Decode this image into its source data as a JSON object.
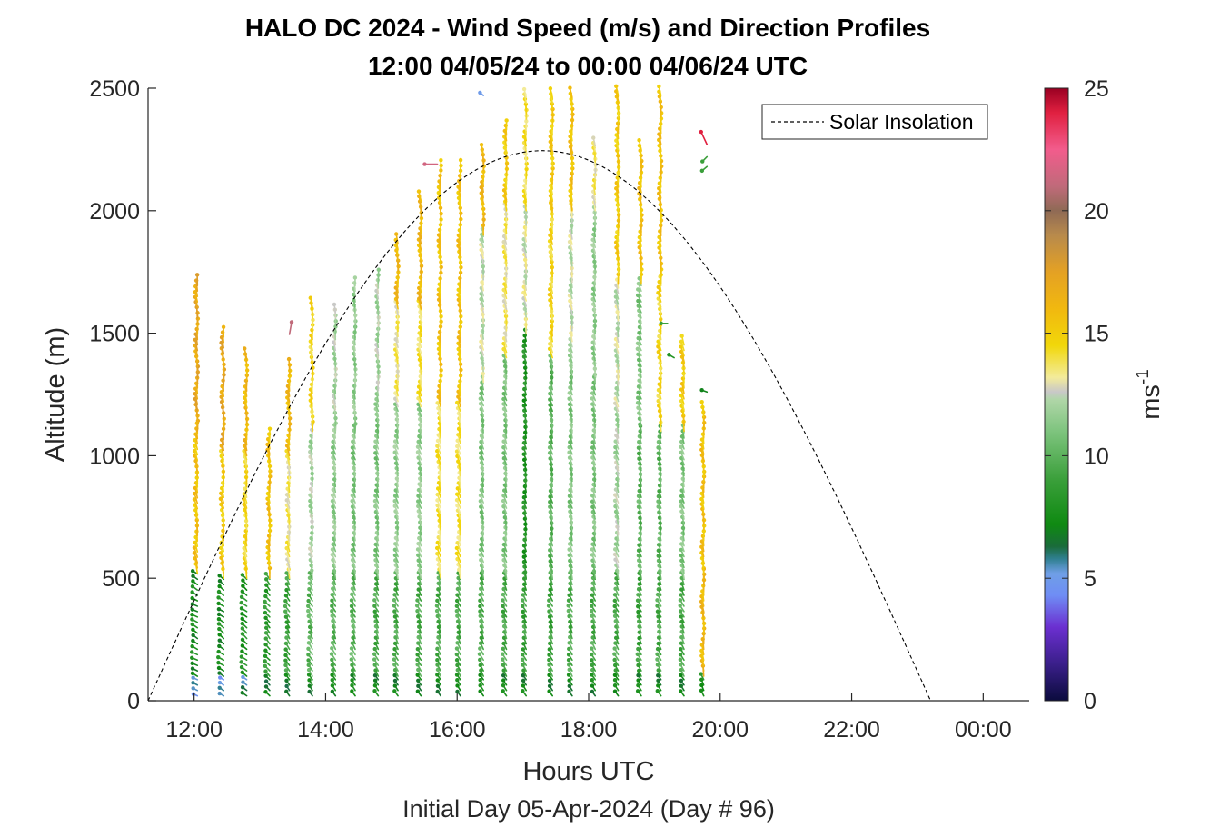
{
  "chart_data": {
    "type": "wind-barb-profile",
    "title_line1": "HALO DC 2024 - Wind Speed (m/s) and Direction Profiles",
    "title_line2": "12:00 04/05/24 to 00:00 04/06/24  UTC",
    "xlabel": "Hours UTC",
    "xsublabel": "Initial Day 05-Apr-2024 (Day # 96)",
    "ylabel": "Altitude (m)",
    "colorbar_label": "ms",
    "colorbar_label_exp": "-1",
    "x_range_hours": [
      11.3,
      24.7
    ],
    "y_range": [
      0,
      2500
    ],
    "x_ticks": [
      {
        "value": 12,
        "label": "12:00"
      },
      {
        "value": 14,
        "label": "14:00"
      },
      {
        "value": 16,
        "label": "16:00"
      },
      {
        "value": 18,
        "label": "18:00"
      },
      {
        "value": 20,
        "label": "20:00"
      },
      {
        "value": 22,
        "label": "22:00"
      },
      {
        "value": 24,
        "label": "00:00"
      }
    ],
    "y_ticks": [
      0,
      500,
      1000,
      1500,
      2000,
      2500
    ],
    "colorbar_range": [
      0,
      25
    ],
    "colorbar_ticks": [
      0,
      5,
      10,
      15,
      20,
      25
    ],
    "colormap": [
      [
        0,
        "#0b0b3d"
      ],
      [
        1.5,
        "#3a1f8a"
      ],
      [
        3,
        "#6b2fd0"
      ],
      [
        4.3,
        "#6f8df5"
      ],
      [
        5.2,
        "#6f9fe6"
      ],
      [
        5.8,
        "#2f7f8f"
      ],
      [
        6.3,
        "#1a6b3a"
      ],
      [
        7.2,
        "#0f8a12"
      ],
      [
        9,
        "#3a9f3a"
      ],
      [
        11,
        "#7ec47e"
      ],
      [
        12.3,
        "#b0d6a8"
      ],
      [
        12.6,
        "#c8c8c8"
      ],
      [
        13.2,
        "#f3eb9a"
      ],
      [
        14.5,
        "#f1d70a"
      ],
      [
        16,
        "#f1b80f"
      ],
      [
        17.5,
        "#e4a124"
      ],
      [
        19,
        "#b88a4c"
      ],
      [
        20,
        "#8f6a55"
      ],
      [
        21,
        "#c06a7a"
      ],
      [
        22.5,
        "#f25c8c"
      ],
      [
        24,
        "#e02040"
      ],
      [
        25,
        "#9a0022"
      ]
    ],
    "legend": {
      "entries": [
        "Solar Insolation"
      ],
      "location": "top-right",
      "line_style": "dashed"
    },
    "solar_insolation": {
      "sunrise_hour": 11.3,
      "peak_hour": 17.3,
      "peak_altitude": 2245,
      "sunset_hour": 23.2
    },
    "profiles": [
      {
        "hour": 12.05,
        "top": 1700,
        "segments": [
          [
            0,
            100,
            5,
            290
          ],
          [
            100,
            520,
            7.5,
            300
          ],
          [
            520,
            1100,
            15.5,
            350
          ],
          [
            1100,
            1700,
            17,
            355
          ]
        ]
      },
      {
        "hour": 12.45,
        "top": 1490,
        "segments": [
          [
            0,
            100,
            5,
            295
          ],
          [
            100,
            500,
            7.5,
            305
          ],
          [
            500,
            1000,
            15,
            350
          ],
          [
            1000,
            1490,
            17,
            355
          ]
        ]
      },
      {
        "hour": 12.8,
        "top": 1400,
        "segments": [
          [
            0,
            100,
            6,
            300
          ],
          [
            100,
            500,
            8,
            310
          ],
          [
            500,
            1000,
            14.5,
            350
          ],
          [
            1000,
            1400,
            16,
            355
          ]
        ]
      },
      {
        "hour": 13.15,
        "top": 1090,
        "segments": [
          [
            0,
            100,
            7,
            310
          ],
          [
            100,
            500,
            8.5,
            320
          ],
          [
            500,
            1090,
            15.5,
            355
          ]
        ]
      },
      {
        "hour": 13.45,
        "top": 1370,
        "segments": [
          [
            0,
            100,
            7,
            320
          ],
          [
            100,
            500,
            9,
            330
          ],
          [
            500,
            1000,
            13.5,
            350
          ],
          [
            1000,
            1370,
            16,
            355
          ]
        ]
      },
      {
        "hour": 13.8,
        "top": 1620,
        "segments": [
          [
            0,
            100,
            7.2,
            320
          ],
          [
            100,
            500,
            10,
            330
          ],
          [
            500,
            1100,
            12,
            350
          ],
          [
            1100,
            1620,
            14.5,
            355
          ]
        ]
      },
      {
        "hour": 14.15,
        "top": 1600,
        "segments": [
          [
            0,
            100,
            7.2,
            320
          ],
          [
            100,
            500,
            10,
            335
          ],
          [
            500,
            1100,
            11.5,
            345
          ],
          [
            1100,
            1600,
            12,
            355
          ]
        ]
      },
      {
        "hour": 14.45,
        "top": 1700,
        "segments": [
          [
            0,
            100,
            7.2,
            320
          ],
          [
            100,
            500,
            10,
            335
          ],
          [
            500,
            1100,
            11,
            345
          ],
          [
            1100,
            1700,
            11.5,
            355
          ]
        ]
      },
      {
        "hour": 14.8,
        "top": 1740,
        "segments": [
          [
            0,
            100,
            7.2,
            320
          ],
          [
            100,
            500,
            9.5,
            335
          ],
          [
            500,
            1200,
            11,
            345
          ],
          [
            1200,
            1740,
            12,
            355
          ]
        ]
      },
      {
        "hour": 15.1,
        "top": 1870,
        "segments": [
          [
            0,
            100,
            7.2,
            320
          ],
          [
            100,
            500,
            9.5,
            335
          ],
          [
            500,
            1200,
            11.5,
            345
          ],
          [
            1200,
            1600,
            13.5,
            350
          ],
          [
            1600,
            1870,
            16,
            355
          ]
        ]
      },
      {
        "hour": 15.45,
        "top": 2050,
        "segments": [
          [
            0,
            100,
            7.2,
            320
          ],
          [
            100,
            500,
            9.5,
            335
          ],
          [
            500,
            1200,
            11.5,
            345
          ],
          [
            1200,
            1600,
            14,
            350
          ],
          [
            1600,
            2050,
            16,
            355
          ]
        ]
      },
      {
        "hour": 15.75,
        "top": 2180,
        "segments": [
          [
            0,
            100,
            7.2,
            320
          ],
          [
            100,
            500,
            9.5,
            335
          ],
          [
            500,
            1200,
            14,
            345
          ],
          [
            1200,
            2180,
            15.5,
            355
          ]
        ]
      },
      {
        "hour": 16.05,
        "top": 2180,
        "segments": [
          [
            0,
            100,
            7.2,
            320
          ],
          [
            100,
            500,
            9.5,
            335
          ],
          [
            500,
            1200,
            14,
            345
          ],
          [
            1200,
            2180,
            15.5,
            355
          ]
        ]
      },
      {
        "hour": 16.4,
        "top": 2250,
        "segments": [
          [
            0,
            100,
            7.2,
            320
          ],
          [
            100,
            500,
            9.5,
            335
          ],
          [
            500,
            1300,
            11,
            345
          ],
          [
            1300,
            1900,
            12.5,
            350
          ],
          [
            1900,
            2250,
            16,
            355
          ]
        ]
      },
      {
        "hour": 16.75,
        "top": 2350,
        "segments": [
          [
            0,
            100,
            7.2,
            320
          ],
          [
            100,
            500,
            9.5,
            335
          ],
          [
            500,
            1400,
            11,
            345
          ],
          [
            1400,
            2000,
            13.5,
            350
          ],
          [
            2000,
            2350,
            15,
            355
          ]
        ]
      },
      {
        "hour": 17.05,
        "top": 2480,
        "segments": [
          [
            0,
            100,
            7.2,
            320
          ],
          [
            100,
            500,
            9,
            335
          ],
          [
            500,
            1500,
            8,
            345
          ],
          [
            1500,
            2000,
            12.8,
            350
          ],
          [
            2000,
            2480,
            14,
            355
          ]
        ]
      },
      {
        "hour": 17.45,
        "top": 2480,
        "segments": [
          [
            0,
            100,
            7.2,
            320
          ],
          [
            100,
            500,
            9,
            335
          ],
          [
            500,
            1400,
            10,
            345
          ],
          [
            1400,
            2000,
            14.5,
            350
          ],
          [
            2000,
            2480,
            15,
            355
          ]
        ]
      },
      {
        "hour": 17.75,
        "top": 2480,
        "segments": [
          [
            0,
            100,
            7.2,
            320
          ],
          [
            100,
            500,
            9.5,
            335
          ],
          [
            500,
            1400,
            11,
            345
          ],
          [
            1400,
            2000,
            12.5,
            350
          ],
          [
            2000,
            2480,
            15.5,
            355
          ]
        ]
      },
      {
        "hour": 18.1,
        "top": 2280,
        "segments": [
          [
            0,
            100,
            7.2,
            320
          ],
          [
            100,
            500,
            9.5,
            335
          ],
          [
            500,
            1300,
            11,
            345
          ],
          [
            1300,
            2000,
            11.5,
            350
          ],
          [
            2000,
            2280,
            13.5,
            355
          ]
        ]
      },
      {
        "hour": 18.45,
        "top": 2480,
        "segments": [
          [
            0,
            100,
            7.2,
            320
          ],
          [
            100,
            500,
            9.5,
            335
          ],
          [
            500,
            1200,
            12,
            345
          ],
          [
            1200,
            1700,
            12.5,
            350
          ],
          [
            1700,
            2480,
            15,
            355
          ]
        ]
      },
      {
        "hour": 18.8,
        "top": 2270,
        "segments": [
          [
            0,
            100,
            7.2,
            320
          ],
          [
            100,
            500,
            9,
            335
          ],
          [
            500,
            1100,
            10,
            345
          ],
          [
            1100,
            1700,
            11,
            340
          ],
          [
            1700,
            2270,
            15.5,
            355
          ]
        ]
      },
      {
        "hour": 19.1,
        "top": 2480,
        "segments": [
          [
            0,
            100,
            7.2,
            320
          ],
          [
            100,
            500,
            9.5,
            335
          ],
          [
            500,
            1100,
            10,
            345
          ],
          [
            1100,
            1700,
            14.5,
            350
          ],
          [
            1700,
            2480,
            15.5,
            355
          ]
        ]
      },
      {
        "hour": 19.45,
        "top": 1460,
        "segments": [
          [
            0,
            100,
            7.2,
            320
          ],
          [
            100,
            500,
            9.5,
            335
          ],
          [
            500,
            1100,
            11,
            345
          ],
          [
            1100,
            1460,
            15,
            350
          ]
        ]
      },
      {
        "hour": 19.75,
        "top": 1200,
        "segments": [
          [
            0,
            100,
            8,
            330
          ],
          [
            100,
            500,
            16,
            355
          ],
          [
            500,
            1200,
            15.5,
            355
          ]
        ]
      }
    ],
    "scattered_barbs": [
      {
        "hour": 16.4,
        "alt": 2470,
        "speed": 5,
        "dir": 310
      },
      {
        "hour": 15.7,
        "alt": 2190,
        "speed": 21.5,
        "dir": 270
      },
      {
        "hour": 13.45,
        "alt": 1495,
        "speed": 21,
        "dir": 10
      },
      {
        "hour": 19.2,
        "alt": 1540,
        "speed": 9,
        "dir": 270
      },
      {
        "hour": 19.3,
        "alt": 1400,
        "speed": 8,
        "dir": 300
      },
      {
        "hour": 19.8,
        "alt": 1260,
        "speed": 7,
        "dir": 290
      },
      {
        "hour": 19.8,
        "alt": 2270,
        "speed": 24,
        "dir": 335
      },
      {
        "hour": 19.8,
        "alt": 2220,
        "speed": 9,
        "dir": 225
      },
      {
        "hour": 19.8,
        "alt": 2180,
        "speed": 9,
        "dir": 230
      }
    ]
  }
}
